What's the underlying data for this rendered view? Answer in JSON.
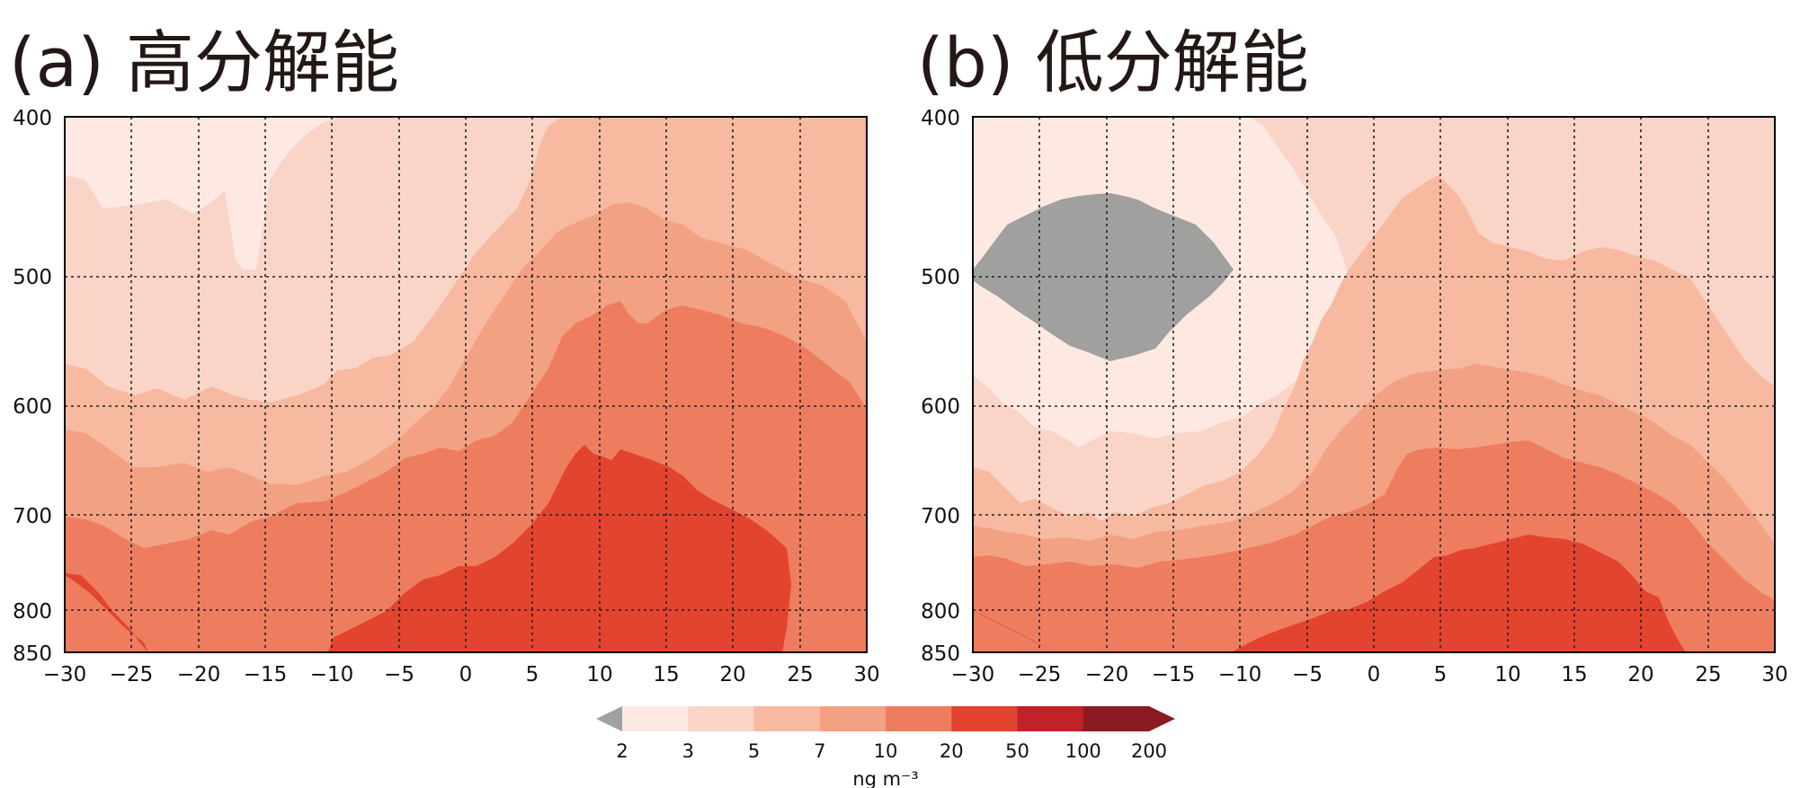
{
  "colors": {
    "levels": [
      "#a0a09e",
      "#fde9e2",
      "#fad5c7",
      "#f7b9a0",
      "#f3a183",
      "#ee7d5f",
      "#e3442f",
      "#c12227",
      "#8b1a22"
    ]
  },
  "chart_data": [
    {
      "type": "contourf",
      "panel": "a",
      "title": "(a) 高分解能",
      "x_ticks": [
        "−30",
        "−25",
        "−20",
        "−15",
        "−10",
        "−5",
        "0",
        "5",
        "10",
        "15",
        "20",
        "25",
        "30"
      ],
      "y_ticks": [
        "400",
        "500",
        "600",
        "700",
        "800",
        "850"
      ],
      "x_range": [
        -30,
        30
      ],
      "y_range": [
        400,
        850
      ],
      "grid": true
    },
    {
      "type": "contourf",
      "panel": "b",
      "title": "(b) 低分解能",
      "x_ticks": [
        "−30",
        "−25",
        "−20",
        "−15",
        "−10",
        "−5",
        "0",
        "5",
        "10",
        "15",
        "20",
        "25",
        "30"
      ],
      "y_ticks": [
        "400",
        "500",
        "600",
        "700",
        "800",
        "850"
      ],
      "x_range": [
        -30,
        30
      ],
      "y_range": [
        400,
        850
      ],
      "grid": true
    }
  ],
  "colorbar": {
    "boundaries": [
      "2",
      "3",
      "5",
      "7",
      "10",
      "20",
      "50",
      "100",
      "200"
    ],
    "label": "ng m⁻³",
    "extend": "both"
  }
}
